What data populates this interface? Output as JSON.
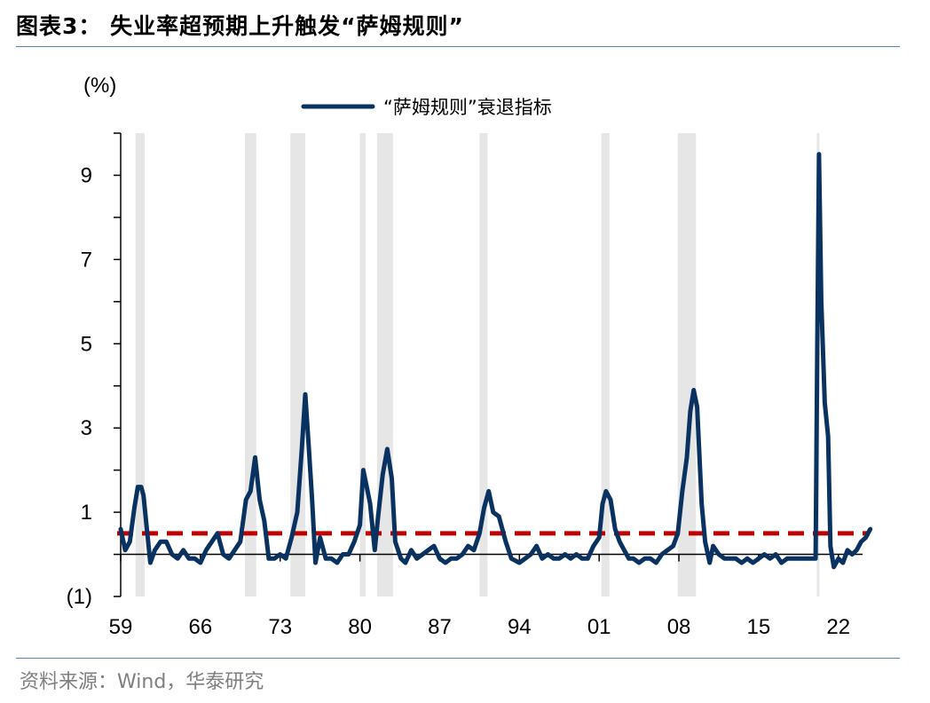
{
  "title": "图表3： 失业率超预期上升触发“萨姆规则”",
  "source": "资料来源：Wind，华泰研究",
  "colors": {
    "series": "#0a3260",
    "threshold": "#c00000",
    "recession": "#e6e6e6",
    "axis": "#000000",
    "rule": "#5a7fb0"
  },
  "chart_data": {
    "type": "line",
    "unit_label": "(%)",
    "xlim": [
      1959,
      2024.9
    ],
    "ylim": [
      -1,
      10
    ],
    "x_ticks": [
      1959,
      1966,
      1973,
      1980,
      1987,
      1994,
      2001,
      2008,
      2015,
      2022
    ],
    "x_tick_labels": [
      "59",
      "66",
      "73",
      "80",
      "87",
      "94",
      "01",
      "08",
      "15",
      "22"
    ],
    "y_ticks": [
      -1,
      1,
      3,
      5,
      7,
      9
    ],
    "y_tick_labels": [
      "(1)",
      "1",
      "3",
      "5",
      "7",
      "9"
    ],
    "legend": {
      "label": "“萨姆规则”衰退指标",
      "position": "top-center"
    },
    "threshold_line": {
      "y": 0.5,
      "style": "dashed"
    },
    "recessions": [
      [
        1960.3,
        1961.1
      ],
      [
        1969.9,
        1970.9
      ],
      [
        1973.9,
        1975.2
      ],
      [
        1980.0,
        1980.5
      ],
      [
        1981.5,
        1982.9
      ],
      [
        1990.5,
        1991.2
      ],
      [
        2001.2,
        2001.9
      ],
      [
        2007.9,
        2009.5
      ],
      [
        2020.1,
        2020.3
      ]
    ],
    "series": [
      {
        "name": "“萨姆规则”衰退指标",
        "points": [
          [
            1959.0,
            0.6
          ],
          [
            1959.4,
            0.1
          ],
          [
            1959.8,
            0.3
          ],
          [
            1960.2,
            1.1
          ],
          [
            1960.5,
            1.6
          ],
          [
            1960.8,
            1.6
          ],
          [
            1961.0,
            1.4
          ],
          [
            1961.3,
            0.6
          ],
          [
            1961.6,
            -0.2
          ],
          [
            1962.0,
            0.1
          ],
          [
            1962.5,
            0.3
          ],
          [
            1963.0,
            0.3
          ],
          [
            1963.5,
            0.0
          ],
          [
            1964.0,
            -0.1
          ],
          [
            1964.5,
            0.1
          ],
          [
            1965.0,
            -0.1
          ],
          [
            1965.5,
            -0.1
          ],
          [
            1966.0,
            -0.2
          ],
          [
            1966.5,
            0.1
          ],
          [
            1967.0,
            0.3
          ],
          [
            1967.5,
            0.5
          ],
          [
            1968.0,
            0.0
          ],
          [
            1968.5,
            -0.1
          ],
          [
            1969.0,
            0.1
          ],
          [
            1969.5,
            0.3
          ],
          [
            1970.0,
            1.3
          ],
          [
            1970.4,
            1.5
          ],
          [
            1970.8,
            2.3
          ],
          [
            1971.2,
            1.3
          ],
          [
            1971.6,
            0.8
          ],
          [
            1972.0,
            -0.1
          ],
          [
            1972.5,
            -0.1
          ],
          [
            1973.0,
            0.0
          ],
          [
            1973.5,
            -0.1
          ],
          [
            1974.0,
            0.4
          ],
          [
            1974.5,
            1.0
          ],
          [
            1974.9,
            2.5
          ],
          [
            1975.2,
            3.8
          ],
          [
            1975.5,
            2.6
          ],
          [
            1975.8,
            1.3
          ],
          [
            1976.1,
            -0.2
          ],
          [
            1976.5,
            0.4
          ],
          [
            1977.0,
            -0.1
          ],
          [
            1977.5,
            -0.1
          ],
          [
            1978.0,
            -0.2
          ],
          [
            1978.5,
            0.0
          ],
          [
            1979.0,
            0.0
          ],
          [
            1979.5,
            0.3
          ],
          [
            1980.0,
            0.7
          ],
          [
            1980.3,
            2.0
          ],
          [
            1980.6,
            1.6
          ],
          [
            1980.9,
            1.2
          ],
          [
            1981.3,
            0.1
          ],
          [
            1981.6,
            0.9
          ],
          [
            1982.0,
            1.9
          ],
          [
            1982.4,
            2.5
          ],
          [
            1982.8,
            1.8
          ],
          [
            1983.1,
            0.3
          ],
          [
            1983.6,
            -0.1
          ],
          [
            1984.0,
            -0.2
          ],
          [
            1984.5,
            0.1
          ],
          [
            1985.0,
            -0.1
          ],
          [
            1985.5,
            0.0
          ],
          [
            1986.0,
            0.1
          ],
          [
            1986.5,
            0.2
          ],
          [
            1987.0,
            -0.1
          ],
          [
            1987.5,
            -0.2
          ],
          [
            1988.0,
            -0.1
          ],
          [
            1988.5,
            -0.1
          ],
          [
            1989.0,
            0.0
          ],
          [
            1989.5,
            0.2
          ],
          [
            1990.0,
            0.1
          ],
          [
            1990.5,
            0.5
          ],
          [
            1990.9,
            1.1
          ],
          [
            1991.3,
            1.5
          ],
          [
            1991.7,
            1.0
          ],
          [
            1992.2,
            0.9
          ],
          [
            1992.8,
            0.3
          ],
          [
            1993.3,
            -0.1
          ],
          [
            1994.0,
            -0.2
          ],
          [
            1994.5,
            -0.1
          ],
          [
            1995.0,
            0.0
          ],
          [
            1995.5,
            0.2
          ],
          [
            1996.0,
            -0.1
          ],
          [
            1996.5,
            0.0
          ],
          [
            1997.0,
            -0.1
          ],
          [
            1997.5,
            -0.1
          ],
          [
            1998.0,
            0.0
          ],
          [
            1998.5,
            -0.1
          ],
          [
            1999.0,
            0.0
          ],
          [
            1999.5,
            -0.1
          ],
          [
            2000.0,
            -0.1
          ],
          [
            2000.5,
            0.2
          ],
          [
            2001.0,
            0.4
          ],
          [
            2001.3,
            1.2
          ],
          [
            2001.6,
            1.5
          ],
          [
            2002.0,
            1.3
          ],
          [
            2002.4,
            0.6
          ],
          [
            2002.8,
            0.3
          ],
          [
            2003.2,
            0.1
          ],
          [
            2003.6,
            -0.1
          ],
          [
            2004.0,
            -0.1
          ],
          [
            2004.5,
            -0.2
          ],
          [
            2005.0,
            -0.1
          ],
          [
            2005.5,
            -0.1
          ],
          [
            2006.0,
            -0.2
          ],
          [
            2006.5,
            0.0
          ],
          [
            2007.0,
            0.1
          ],
          [
            2007.5,
            0.2
          ],
          [
            2007.9,
            0.5
          ],
          [
            2008.3,
            1.5
          ],
          [
            2008.7,
            2.3
          ],
          [
            2009.0,
            3.4
          ],
          [
            2009.3,
            3.9
          ],
          [
            2009.6,
            3.5
          ],
          [
            2010.0,
            1.2
          ],
          [
            2010.3,
            0.3
          ],
          [
            2010.7,
            -0.2
          ],
          [
            2011.0,
            0.2
          ],
          [
            2011.5,
            0.0
          ],
          [
            2012.0,
            -0.1
          ],
          [
            2012.5,
            -0.1
          ],
          [
            2013.0,
            -0.1
          ],
          [
            2013.5,
            -0.2
          ],
          [
            2014.0,
            -0.1
          ],
          [
            2014.5,
            -0.2
          ],
          [
            2015.0,
            -0.1
          ],
          [
            2015.5,
            0.0
          ],
          [
            2016.0,
            -0.1
          ],
          [
            2016.5,
            0.0
          ],
          [
            2017.0,
            -0.2
          ],
          [
            2017.5,
            -0.1
          ],
          [
            2018.0,
            -0.1
          ],
          [
            2018.5,
            -0.1
          ],
          [
            2019.0,
            -0.1
          ],
          [
            2019.5,
            -0.1
          ],
          [
            2020.0,
            -0.1
          ],
          [
            2020.15,
            5.0
          ],
          [
            2020.3,
            9.5
          ],
          [
            2020.5,
            6.0
          ],
          [
            2020.8,
            3.6
          ],
          [
            2021.1,
            2.8
          ],
          [
            2021.3,
            0.2
          ],
          [
            2021.6,
            -0.3
          ],
          [
            2022.0,
            -0.1
          ],
          [
            2022.4,
            -0.2
          ],
          [
            2022.8,
            0.1
          ],
          [
            2023.2,
            0.0
          ],
          [
            2023.6,
            0.1
          ],
          [
            2024.0,
            0.3
          ],
          [
            2024.4,
            0.4
          ],
          [
            2024.8,
            0.6
          ]
        ]
      }
    ]
  }
}
